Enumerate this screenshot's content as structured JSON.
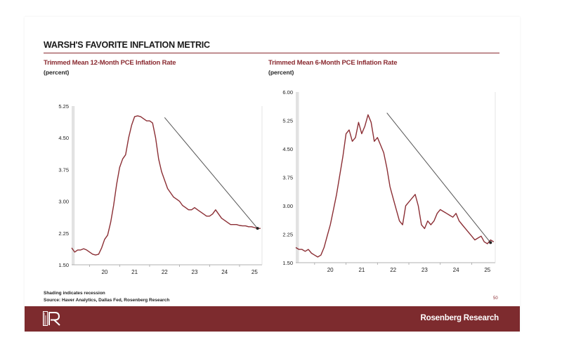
{
  "header": {
    "title": "WARSH'S FAVORITE INFLATION METRIC"
  },
  "footer": {
    "shading_note": "Shading indicates recession",
    "source": "Source: Haver Analytics, Dallas Fed, Rosenberg Research",
    "brand": "Rosenberg Research",
    "page_number": "50"
  },
  "colors": {
    "series_line": "#8b2e34",
    "trend_line": "#555555",
    "footer_bar": "#7d2b2e",
    "recession_shading": "#e2e2e2",
    "title_accent": "#8a2a30"
  },
  "logo": {
    "icon": "rosenberg-r-logo-icon"
  },
  "chart_data": [
    {
      "type": "line",
      "title": "Trimmed Mean 12-Month PCE Inflation Rate",
      "unit": "(percent)",
      "xlim": [
        19.4,
        25.75
      ],
      "ylim": [
        1.5,
        5.25
      ],
      "yticks": [
        "1.50",
        "2.25",
        "3.00",
        "3.75",
        "4.50",
        "5.25"
      ],
      "xticks": [
        "20",
        "21",
        "22",
        "23",
        "24",
        "25"
      ],
      "recession": [
        19.4,
        19.5
      ],
      "series": [
        {
          "x": [
            19.4,
            19.5,
            19.6,
            19.7,
            19.8,
            19.9,
            20.0,
            20.1,
            20.2,
            20.3,
            20.4,
            20.5,
            20.6,
            20.7,
            20.8,
            20.9,
            21.0,
            21.1,
            21.2,
            21.3,
            21.4,
            21.5,
            21.6,
            21.7,
            21.8,
            21.9,
            22.0,
            22.1,
            22.2,
            22.3,
            22.4,
            22.5,
            22.6,
            22.7,
            22.8,
            22.9,
            23.0,
            23.1,
            23.2,
            23.3,
            23.4,
            23.5,
            23.6,
            23.7,
            23.8,
            23.9,
            24.0,
            24.1,
            24.2,
            24.3,
            24.4,
            24.5,
            24.6,
            24.7,
            24.8,
            24.9,
            25.0,
            25.1,
            25.2,
            25.3,
            25.4,
            25.5,
            25.6,
            25.7
          ],
          "y": [
            1.9,
            1.8,
            1.85,
            1.85,
            1.88,
            1.85,
            1.8,
            1.75,
            1.73,
            1.75,
            1.9,
            2.1,
            2.2,
            2.5,
            2.9,
            3.4,
            3.8,
            4.0,
            4.1,
            4.5,
            4.8,
            5.0,
            5.02,
            5.0,
            4.95,
            4.9,
            4.9,
            4.85,
            4.5,
            4.0,
            3.7,
            3.5,
            3.3,
            3.2,
            3.1,
            3.05,
            3.0,
            2.9,
            2.85,
            2.8,
            2.8,
            2.85,
            2.8,
            2.75,
            2.7,
            2.65,
            2.65,
            2.7,
            2.8,
            2.7,
            2.6,
            2.55,
            2.5,
            2.45,
            2.45,
            2.45,
            2.43,
            2.42,
            2.42,
            2.4,
            2.4,
            2.38,
            2.36,
            2.36
          ]
        }
      ],
      "trendline": {
        "x": [
          22.5,
          25.6
        ],
        "y": [
          4.98,
          2.36
        ]
      }
    },
    {
      "type": "line",
      "title": "Trimmed Mean 6-Month PCE Inflation Rate",
      "unit": "(percent)",
      "xlim": [
        19.4,
        25.75
      ],
      "ylim": [
        1.5,
        6.0
      ],
      "yticks": [
        "1.50",
        "2.25",
        "3.00",
        "3.75",
        "4.50",
        "5.25",
        "6.00"
      ],
      "xticks": [
        "20",
        "21",
        "22",
        "23",
        "24",
        "25"
      ],
      "recession": [
        19.4,
        19.5
      ],
      "series": [
        {
          "x": [
            19.4,
            19.5,
            19.6,
            19.7,
            19.8,
            19.9,
            20.0,
            20.1,
            20.2,
            20.3,
            20.4,
            20.5,
            20.6,
            20.7,
            20.8,
            20.9,
            21.0,
            21.1,
            21.2,
            21.3,
            21.4,
            21.5,
            21.6,
            21.7,
            21.8,
            21.9,
            22.0,
            22.1,
            22.2,
            22.3,
            22.4,
            22.5,
            22.6,
            22.7,
            22.8,
            22.9,
            23.0,
            23.1,
            23.2,
            23.3,
            23.4,
            23.5,
            23.6,
            23.7,
            23.8,
            23.9,
            24.0,
            24.1,
            24.2,
            24.3,
            24.4,
            24.5,
            24.6,
            24.7,
            24.8,
            24.9,
            25.0,
            25.1,
            25.2,
            25.3,
            25.4,
            25.5,
            25.6,
            25.7
          ],
          "y": [
            1.9,
            1.85,
            1.85,
            1.8,
            1.85,
            1.75,
            1.7,
            1.65,
            1.7,
            1.9,
            2.2,
            2.5,
            2.9,
            3.3,
            3.8,
            4.3,
            4.9,
            5.0,
            4.7,
            4.8,
            5.2,
            4.9,
            5.1,
            5.4,
            5.2,
            4.7,
            4.8,
            4.6,
            4.4,
            4.0,
            3.5,
            3.2,
            2.9,
            2.6,
            2.5,
            3.0,
            3.1,
            3.2,
            3.3,
            3.0,
            2.5,
            2.4,
            2.6,
            2.5,
            2.6,
            2.8,
            2.9,
            2.85,
            2.8,
            2.75,
            2.7,
            2.8,
            2.6,
            2.5,
            2.4,
            2.3,
            2.2,
            2.1,
            2.15,
            2.2,
            2.05,
            2.0,
            2.1,
            2.05
          ]
        }
      ],
      "trendline": {
        "x": [
          22.3,
          25.6
        ],
        "y": [
          5.45,
          2.03
        ]
      }
    }
  ]
}
